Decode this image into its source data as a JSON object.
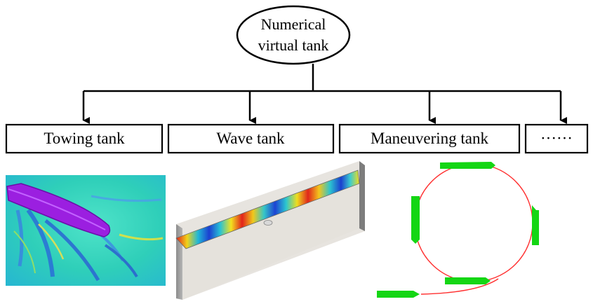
{
  "diagram": {
    "root": {
      "lines": [
        "Numerical",
        "virtual tank"
      ]
    },
    "children": [
      {
        "id": "towing",
        "label": "Towing tank"
      },
      {
        "id": "wave",
        "label": "Wave tank"
      },
      {
        "id": "maneuvering",
        "label": "Maneuvering tank"
      },
      {
        "id": "more",
        "label": "······"
      }
    ]
  },
  "illustrations": {
    "towing": {
      "depicts": "ship-wake-field",
      "hull_color": "#9b1fe0",
      "field_color": "#34d3b8"
    },
    "wave": {
      "depicts": "wave-field-basin",
      "low_color": "#1f4fd8",
      "high_color": "#e0241c"
    },
    "maneuvering": {
      "depicts": "turning-circle",
      "path_color": "#ff3030",
      "ship_color": "#14d614"
    }
  }
}
